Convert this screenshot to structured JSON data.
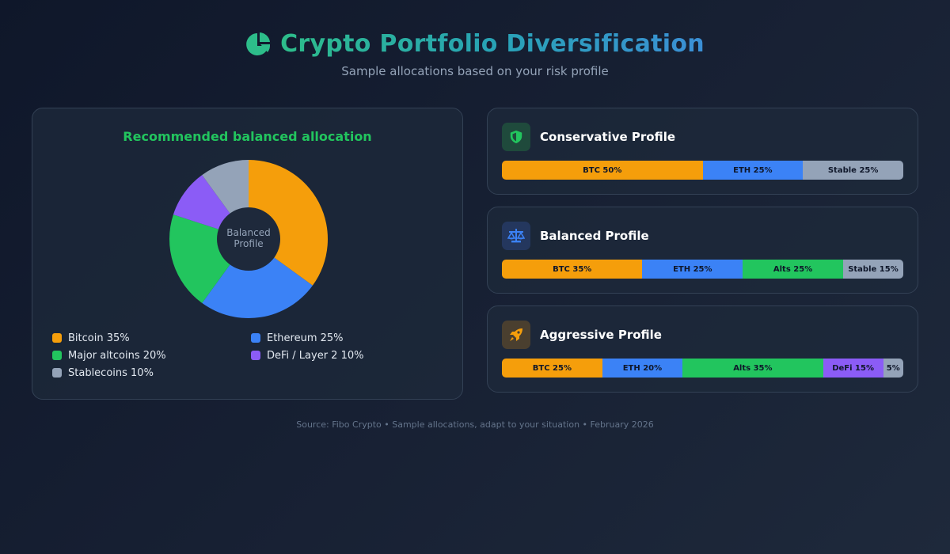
{
  "header": {
    "icon": "pie-chart-icon",
    "title": "Crypto Portfolio Diversification",
    "subtitle": "Sample allocations based on your risk profile"
  },
  "colors": {
    "bitcoin": "#f59e0b",
    "ethereum": "#3b82f6",
    "altcoins": "#22c55e",
    "defi": "#8b5cf6",
    "stablecoins": "#94a3b8",
    "accent_green": "#22c55e"
  },
  "chart_data": [
    {
      "type": "pie",
      "variant": "donut",
      "title": "Recommended balanced allocation",
      "center_label": "Balanced Profile",
      "categories": [
        "Bitcoin",
        "Ethereum",
        "Major altcoins",
        "DeFi / Layer 2",
        "Stablecoins"
      ],
      "values": [
        35,
        25,
        20,
        10,
        10
      ],
      "colors": [
        "#f59e0b",
        "#3b82f6",
        "#22c55e",
        "#8b5cf6",
        "#94a3b8"
      ],
      "start_angle": "top, clockwise",
      "legend_position": "bottom",
      "legend": [
        "Bitcoin 35%",
        "Ethereum 25%",
        "Major altcoins 20%",
        "DeFi / Layer 2 10%",
        "Stablecoins 10%"
      ]
    },
    {
      "type": "bar",
      "variant": "stacked-horizontal-100",
      "title": "Conservative Profile",
      "categories": [
        "BTC",
        "ETH",
        "Stable"
      ],
      "values": [
        50,
        25,
        25
      ]
    },
    {
      "type": "bar",
      "variant": "stacked-horizontal-100",
      "title": "Balanced Profile",
      "categories": [
        "BTC",
        "ETH",
        "Alts",
        "Stable"
      ],
      "values": [
        35,
        25,
        25,
        15
      ]
    },
    {
      "type": "bar",
      "variant": "stacked-horizontal-100",
      "title": "Aggressive Profile",
      "categories": [
        "BTC",
        "ETH",
        "Alts",
        "DeFi",
        "Stable"
      ],
      "values": [
        25,
        20,
        35,
        15,
        5
      ]
    }
  ],
  "donut_card": {
    "title": "Recommended balanced allocation",
    "center_line1": "Balanced",
    "center_line2": "Profile",
    "legend": [
      {
        "label": "Bitcoin 35%",
        "color": "#f59e0b"
      },
      {
        "label": "Ethereum 25%",
        "color": "#3b82f6"
      },
      {
        "label": "Major altcoins 20%",
        "color": "#22c55e"
      },
      {
        "label": "DeFi / Layer 2 10%",
        "color": "#8b5cf6"
      },
      {
        "label": "Stablecoins 10%",
        "color": "#94a3b8"
      }
    ]
  },
  "profiles": [
    {
      "title": "Conservative Profile",
      "icon": "shield-icon",
      "icon_color": "#22c55e",
      "icon_bg": "#1f4a3c",
      "segments": [
        {
          "label": "BTC 50%",
          "value": 50,
          "color": "#f59e0b"
        },
        {
          "label": "ETH 25%",
          "value": 25,
          "color": "#3b82f6"
        },
        {
          "label": "Stable 25%",
          "value": 25,
          "color": "#94a3b8"
        }
      ]
    },
    {
      "title": "Balanced Profile",
      "icon": "scale-icon",
      "icon_color": "#3b82f6",
      "icon_bg": "#24375e",
      "segments": [
        {
          "label": "BTC 35%",
          "value": 35,
          "color": "#f59e0b"
        },
        {
          "label": "ETH 25%",
          "value": 25,
          "color": "#3b82f6"
        },
        {
          "label": "Alts 25%",
          "value": 25,
          "color": "#22c55e"
        },
        {
          "label": "Stable 15%",
          "value": 15,
          "color": "#94a3b8"
        }
      ]
    },
    {
      "title": "Aggressive Profile",
      "icon": "rocket-icon",
      "icon_color": "#f59e0b",
      "icon_bg": "#4a3f2f",
      "segments": [
        {
          "label": "BTC 25%",
          "value": 25,
          "color": "#f59e0b"
        },
        {
          "label": "ETH 20%",
          "value": 20,
          "color": "#3b82f6"
        },
        {
          "label": "Alts 35%",
          "value": 35,
          "color": "#22c55e"
        },
        {
          "label": "DeFi 15%",
          "value": 15,
          "color": "#8b5cf6"
        },
        {
          "label": "5%",
          "value": 5,
          "color": "#94a3b8"
        }
      ]
    }
  ],
  "footer": {
    "text": "Source: Fibo Crypto • Sample allocations, adapt to your situation • February 2026"
  }
}
